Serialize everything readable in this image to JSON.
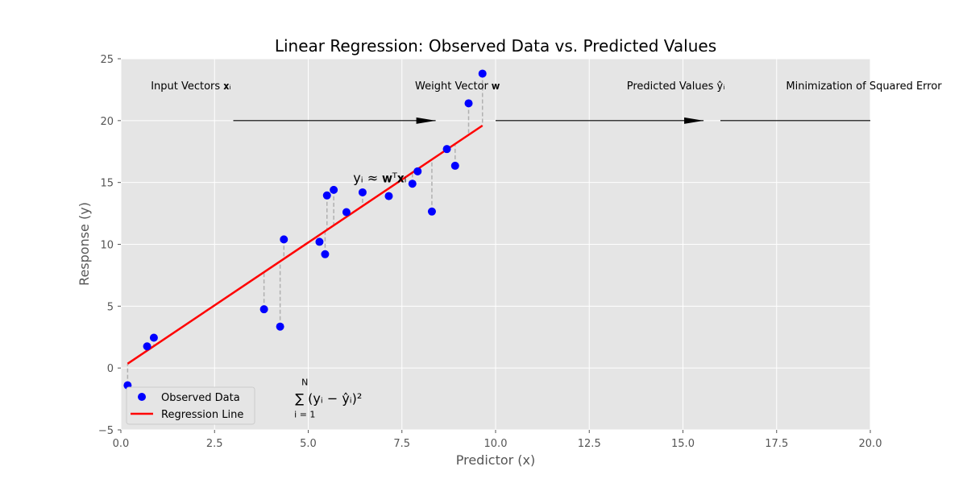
{
  "chart_data": {
    "type": "scatter",
    "title": "Linear Regression: Observed Data vs. Predicted Values",
    "xlabel": "Predictor (x)",
    "ylabel": "Response (y)",
    "xlim": [
      0,
      20
    ],
    "ylim": [
      -5,
      25
    ],
    "xticks": [
      0,
      2.5,
      5,
      7.5,
      10,
      12.5,
      15,
      17.5,
      20
    ],
    "xtick_labels": [
      "0.0",
      "2.5",
      "5.0",
      "7.5",
      "10.0",
      "12.5",
      "15.0",
      "17.5",
      "20.0"
    ],
    "yticks": [
      -5,
      0,
      5,
      10,
      15,
      20,
      25
    ],
    "ytick_labels": [
      "−5",
      "0",
      "5",
      "10",
      "15",
      "20",
      "25"
    ],
    "grid": true,
    "legend_position": "lower-left",
    "series": [
      {
        "name": "Observed Data",
        "kind": "scatter",
        "color": "#0000ff",
        "points": [
          [
            0.18,
            -1.4
          ],
          [
            0.7,
            1.75
          ],
          [
            0.88,
            2.45
          ],
          [
            3.82,
            4.75
          ],
          [
            4.25,
            3.35
          ],
          [
            4.35,
            10.4
          ],
          [
            5.3,
            10.2
          ],
          [
            5.45,
            9.2
          ],
          [
            5.5,
            13.95
          ],
          [
            5.68,
            14.4
          ],
          [
            6.02,
            12.6
          ],
          [
            6.45,
            14.2
          ],
          [
            7.15,
            13.9
          ],
          [
            7.78,
            14.9
          ],
          [
            7.92,
            15.9
          ],
          [
            8.3,
            12.65
          ],
          [
            8.7,
            17.7
          ],
          [
            8.92,
            16.35
          ],
          [
            9.28,
            21.4
          ],
          [
            9.65,
            23.8
          ]
        ]
      },
      {
        "name": "Regression Line",
        "kind": "line",
        "color": "#ff0000",
        "x": [
          0.18,
          9.65
        ],
        "y": [
          0.35,
          19.6
        ],
        "slope": 2.033,
        "intercept": -0.016
      }
    ],
    "residual_style": {
      "color": "#b0b0b0",
      "dash": "dashed"
    },
    "pipeline": {
      "labels": [
        {
          "text": "Input Vectors 𝐱ᵢ",
          "x": 0.8,
          "y": 22.2
        },
        {
          "text": "Weight Vector 𝐰",
          "x": 7.85,
          "y": 22.2
        },
        {
          "text": "Predicted Values ŷᵢ",
          "x": 13.5,
          "y": 22.2
        },
        {
          "text": "Minimization of Squared Error",
          "x": 17.75,
          "y": 22.2
        }
      ],
      "arrows": [
        {
          "x_from": 3.0,
          "x_to": 8.4,
          "y": 20
        },
        {
          "x_from": 10.0,
          "x_to": 15.55,
          "y": 20
        },
        {
          "x_from": 16.0,
          "x_to": 20.0,
          "y": 20
        }
      ],
      "color": "#000000"
    },
    "annotations": {
      "equation": {
        "text": "yᵢ ≈ 𝐰ᵀ𝐱ᵢ",
        "x": 6.2,
        "y": 15.0
      },
      "loss": {
        "text": "∑ (yᵢ − ŷᵢ)²",
        "sum_upper": "N",
        "sum_lower": "i = 1",
        "x": 4.2,
        "y": -2.5
      }
    },
    "colors": {
      "plot_bg": "#e5e5e5",
      "grid": "#ffffff",
      "axis_text": "#555555",
      "title": "#000000"
    }
  }
}
